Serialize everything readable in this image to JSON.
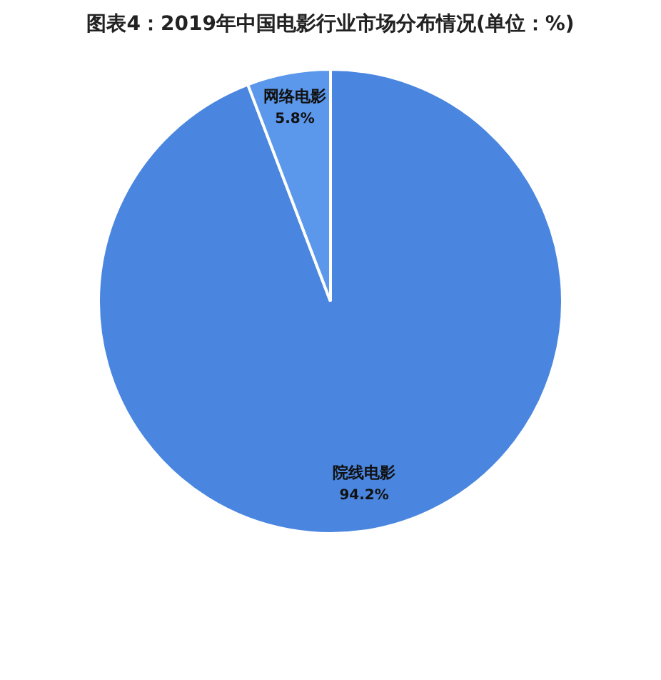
{
  "chart_data": {
    "type": "pie",
    "title": "图表4：2019年中国电影行业市场分布情况(单位：%)",
    "categories": [
      "院线电影",
      "网络电影"
    ],
    "values": [
      94.2,
      5.8
    ],
    "colors": [
      "#4a86e0",
      "#5b97ea"
    ],
    "value_labels": [
      "94.2%",
      "5.8%"
    ],
    "legend": false
  }
}
